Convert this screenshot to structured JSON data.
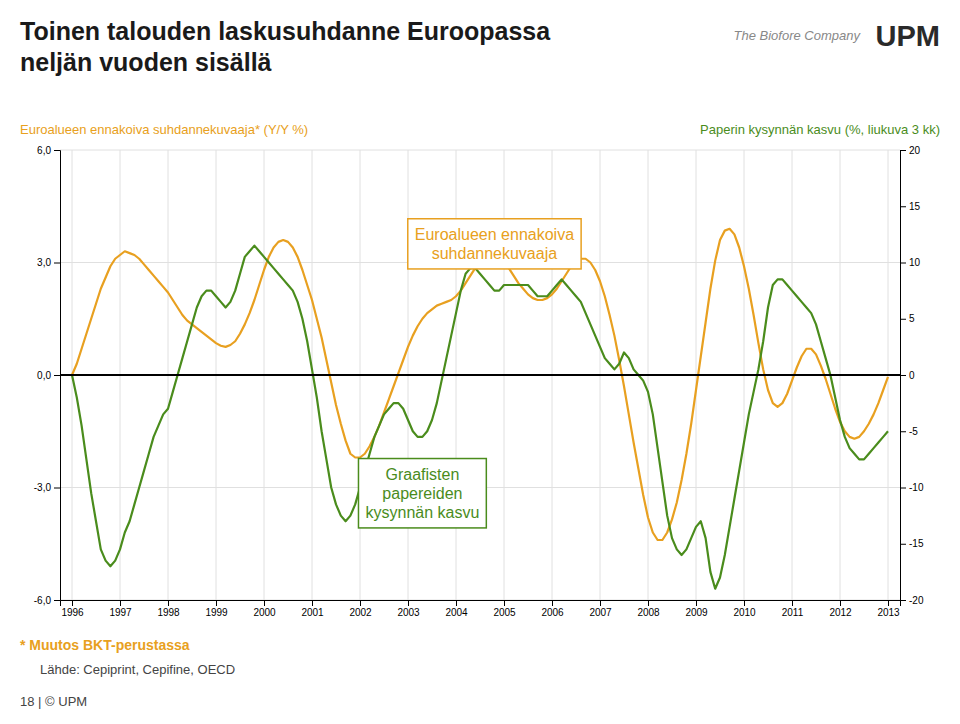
{
  "chart_data": {
    "type": "line",
    "title": "Toinen talouden laskusuhdanne Euroopassa\nneljän vuoden sisällä",
    "y_label": "Euroalueen ennakoiva suhdannekuvaaja* (Y/Y %)",
    "y2_label": "Paperin kysynnän kasvu (%, liukuva 3 kk)",
    "footnotes": [
      "* Muutos BKT-perustassa",
      "Lähde: Cepiprint, Cepifine, OECD",
      "18 | © UPM"
    ],
    "logo_text": "UPM",
    "logo_subtitle": "The Biofore Company",
    "grid": true,
    "xlim": [
      1995.75,
      2013.25
    ],
    "xticks": [
      1996,
      1997,
      1998,
      1999,
      2000,
      2001,
      2002,
      2003,
      2004,
      2005,
      2006,
      2007,
      2008,
      2009,
      2010,
      2011,
      2012,
      2013
    ],
    "ylim": [
      -6.0,
      6.0
    ],
    "yticks": [
      {
        "value": -6.0,
        "label": "-6,0"
      },
      {
        "value": -3.0,
        "label": "-3,0"
      },
      {
        "value": 0.0,
        "label": "0,0"
      },
      {
        "value": 3.0,
        "label": "3,0"
      },
      {
        "value": 6.0,
        "label": "6,0"
      }
    ],
    "y2lim": [
      -20.0,
      20.0
    ],
    "y2ticks": [
      -20,
      -15,
      -10,
      -5,
      0,
      5,
      10,
      15,
      20
    ],
    "annotations": [
      {
        "text": "Euroalueen ennakoiva\nsuhdannekuvaaja",
        "x": 2004.8,
        "y": 3.5,
        "axis": "y",
        "color": "#E8A020"
      },
      {
        "text": "Graafisten\npapereiden\nkysynnän kasvu",
        "x": 2003.3,
        "y": -10.5,
        "axis": "y2",
        "color": "#4A8C1C"
      }
    ],
    "x": [
      1996.0,
      1996.1,
      1996.2,
      1996.3,
      1996.4,
      1996.5,
      1996.6,
      1996.7,
      1996.8,
      1996.9,
      1997.0,
      1997.1,
      1997.2,
      1997.3,
      1997.4,
      1997.5,
      1997.6,
      1997.7,
      1997.8,
      1997.9,
      1998.0,
      1998.1,
      1998.2,
      1998.3,
      1998.4,
      1998.5,
      1998.6,
      1998.7,
      1998.8,
      1998.9,
      1999.0,
      1999.1,
      1999.2,
      1999.3,
      1999.4,
      1999.5,
      1999.6,
      1999.7,
      1999.8,
      1999.9,
      2000.0,
      2000.1,
      2000.2,
      2000.3,
      2000.4,
      2000.5,
      2000.6,
      2000.7,
      2000.8,
      2000.9,
      2001.0,
      2001.1,
      2001.2,
      2001.3,
      2001.4,
      2001.5,
      2001.6,
      2001.7,
      2001.8,
      2001.9,
      2002.0,
      2002.1,
      2002.2,
      2002.3,
      2002.4,
      2002.5,
      2002.6,
      2002.7,
      2002.8,
      2002.9,
      2003.0,
      2003.1,
      2003.2,
      2003.3,
      2003.4,
      2003.5,
      2003.6,
      2003.7,
      2003.8,
      2003.9,
      2004.0,
      2004.1,
      2004.2,
      2004.3,
      2004.4,
      2004.5,
      2004.6,
      2004.7,
      2004.8,
      2004.9,
      2005.0,
      2005.1,
      2005.2,
      2005.3,
      2005.4,
      2005.5,
      2005.6,
      2005.7,
      2005.8,
      2005.9,
      2006.0,
      2006.1,
      2006.2,
      2006.3,
      2006.4,
      2006.5,
      2006.6,
      2006.7,
      2006.8,
      2006.9,
      2007.0,
      2007.1,
      2007.2,
      2007.3,
      2007.4,
      2007.5,
      2007.6,
      2007.7,
      2007.8,
      2007.9,
      2008.0,
      2008.1,
      2008.2,
      2008.3,
      2008.4,
      2008.5,
      2008.6,
      2008.7,
      2008.8,
      2008.9,
      2009.0,
      2009.1,
      2009.2,
      2009.3,
      2009.4,
      2009.5,
      2009.6,
      2009.7,
      2009.8,
      2009.9,
      2010.0,
      2010.1,
      2010.2,
      2010.3,
      2010.4,
      2010.5,
      2010.6,
      2010.7,
      2010.8,
      2010.9,
      2011.0,
      2011.1,
      2011.2,
      2011.3,
      2011.4,
      2011.5,
      2011.6,
      2011.7,
      2011.8,
      2011.9,
      2012.0,
      2012.1,
      2012.2,
      2012.3,
      2012.4,
      2012.5,
      2012.6,
      2012.7,
      2012.8,
      2012.9,
      2013.0
    ],
    "series": [
      {
        "color": "#E8A020",
        "axis": "y",
        "values": [
          0.0,
          0.3,
          0.7,
          1.1,
          1.5,
          1.9,
          2.3,
          2.6,
          2.9,
          3.1,
          3.2,
          3.3,
          3.25,
          3.2,
          3.1,
          2.95,
          2.8,
          2.65,
          2.5,
          2.35,
          2.2,
          2.0,
          1.8,
          1.6,
          1.45,
          1.35,
          1.25,
          1.15,
          1.05,
          0.95,
          0.85,
          0.78,
          0.75,
          0.8,
          0.9,
          1.1,
          1.35,
          1.65,
          2.0,
          2.4,
          2.8,
          3.15,
          3.4,
          3.55,
          3.6,
          3.55,
          3.4,
          3.15,
          2.8,
          2.4,
          2.0,
          1.5,
          1.0,
          0.4,
          -0.2,
          -0.8,
          -1.3,
          -1.75,
          -2.1,
          -2.2,
          -2.2,
          -2.1,
          -1.9,
          -1.65,
          -1.35,
          -1.0,
          -0.65,
          -0.3,
          0.05,
          0.4,
          0.75,
          1.05,
          1.3,
          1.5,
          1.65,
          1.75,
          1.85,
          1.9,
          1.95,
          2.0,
          2.1,
          2.25,
          2.45,
          2.65,
          2.85,
          3.0,
          3.1,
          3.15,
          3.15,
          3.1,
          3.0,
          2.85,
          2.65,
          2.45,
          2.3,
          2.15,
          2.05,
          2.0,
          2.0,
          2.05,
          2.15,
          2.3,
          2.5,
          2.7,
          2.9,
          3.05,
          3.1,
          3.1,
          3.0,
          2.8,
          2.5,
          2.1,
          1.6,
          1.05,
          0.4,
          -0.3,
          -1.05,
          -1.8,
          -2.5,
          -3.2,
          -3.8,
          -4.2,
          -4.4,
          -4.4,
          -4.2,
          -3.85,
          -3.4,
          -2.8,
          -2.1,
          -1.3,
          -0.4,
          0.5,
          1.4,
          2.3,
          3.05,
          3.6,
          3.85,
          3.9,
          3.75,
          3.4,
          2.9,
          2.3,
          1.6,
          0.85,
          0.15,
          -0.4,
          -0.75,
          -0.85,
          -0.75,
          -0.5,
          -0.15,
          0.2,
          0.5,
          0.7,
          0.7,
          0.55,
          0.25,
          -0.1,
          -0.5,
          -0.9,
          -1.25,
          -1.5,
          -1.65,
          -1.7,
          -1.65,
          -1.5,
          -1.3,
          -1.05,
          -0.75,
          -0.4,
          -0.05
        ]
      },
      {
        "color": "#4A8C1C",
        "axis": "y2",
        "values": [
          0.0,
          -2.0,
          -4.5,
          -7.5,
          -10.5,
          -13.0,
          -15.5,
          -16.5,
          -17.0,
          -16.5,
          -15.5,
          -14.0,
          -13.0,
          -11.5,
          -10.0,
          -8.5,
          -7.0,
          -5.5,
          -4.5,
          -3.5,
          -3.0,
          -1.5,
          0.0,
          1.5,
          3.0,
          4.5,
          6.0,
          7.0,
          7.5,
          7.5,
          7.0,
          6.5,
          6.0,
          6.5,
          7.5,
          9.0,
          10.5,
          11.0,
          11.5,
          11.0,
          10.5,
          10.0,
          9.5,
          9.0,
          8.5,
          8.0,
          7.5,
          6.5,
          5.0,
          3.0,
          0.5,
          -2.0,
          -5.0,
          -7.5,
          -10.0,
          -11.5,
          -12.5,
          -13.0,
          -12.5,
          -11.5,
          -10.0,
          -8.5,
          -7.0,
          -5.5,
          -4.5,
          -3.5,
          -3.0,
          -2.5,
          -2.5,
          -3.0,
          -4.0,
          -5.0,
          -5.5,
          -5.5,
          -5.0,
          -4.0,
          -2.5,
          -0.5,
          1.5,
          3.5,
          5.5,
          7.5,
          9.0,
          9.5,
          9.5,
          9.0,
          8.5,
          8.0,
          7.5,
          7.5,
          8.0,
          8.0,
          8.0,
          8.0,
          8.0,
          8.0,
          7.5,
          7.0,
          7.0,
          7.0,
          7.5,
          8.0,
          8.5,
          8.0,
          7.5,
          7.0,
          6.5,
          5.5,
          4.5,
          3.5,
          2.5,
          1.5,
          1.0,
          0.5,
          1.0,
          2.0,
          1.5,
          0.5,
          0.0,
          -0.5,
          -1.5,
          -3.5,
          -6.5,
          -9.5,
          -12.5,
          -14.5,
          -15.5,
          -16.0,
          -15.5,
          -14.5,
          -13.5,
          -13.0,
          -14.5,
          -17.5,
          -19.0,
          -18.0,
          -16.0,
          -13.5,
          -11.0,
          -8.5,
          -6.0,
          -3.5,
          -1.5,
          0.5,
          3.0,
          6.0,
          8.0,
          8.5,
          8.5,
          8.0,
          7.5,
          7.0,
          6.5,
          6.0,
          5.5,
          4.5,
          3.0,
          1.5,
          0.0,
          -2.0,
          -4.0,
          -5.5,
          -6.5,
          -7.0,
          -7.5,
          -7.5,
          -7.0,
          -6.5,
          -6.0,
          -5.5,
          -5.0
        ]
      }
    ]
  }
}
